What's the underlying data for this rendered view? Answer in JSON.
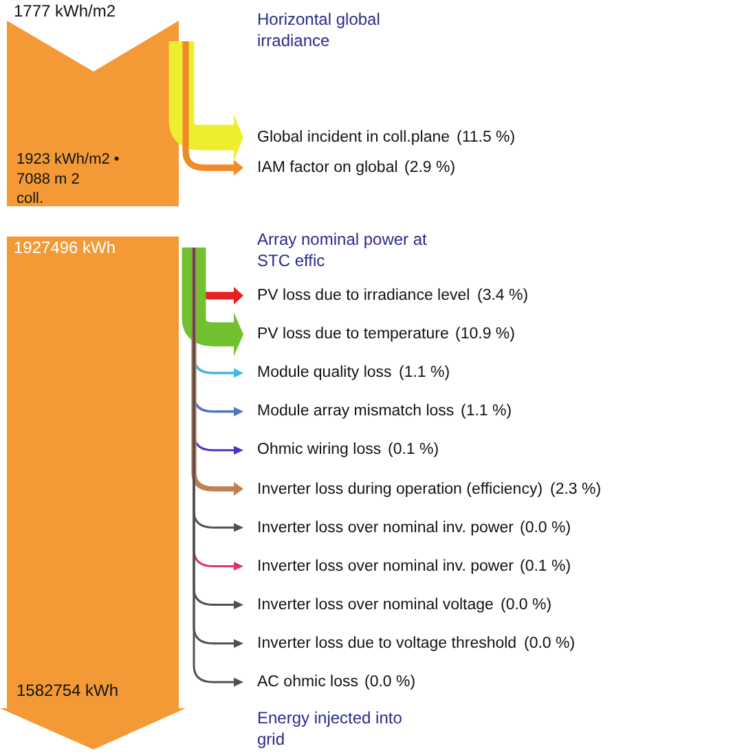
{
  "chart_data": {
    "type": "other",
    "annotations": [
      "1777 kWh/m2",
      "Horizontal global irradiance",
      "1923 kWh/m2 • 7088 m 2 coll.",
      "1927496 kWh",
      "Array nominal power at STC effic",
      "1582754 kWh",
      "Energy injected into grid"
    ],
    "categories": [
      "Global incident in coll.plane",
      "IAM factor on global",
      "PV loss due to irradiance level",
      "PV loss due to temperature",
      "Module quality loss",
      "Module array mismatch loss",
      "Ohmic wiring loss",
      "Inverter loss during operation (efficiency)",
      "Inverter loss over nominal inv. power",
      "Inverter loss over nominal inv. power",
      "Inverter loss over nominal voltage",
      "Inverter loss due to voltage threshold",
      "AC ohmic loss"
    ],
    "values": [
      11.5,
      2.9,
      3.4,
      10.9,
      1.1,
      1.1,
      0.1,
      2.3,
      0.0,
      0.1,
      0.0,
      0.0,
      0.0
    ],
    "value_labels": [
      "(11.5 %)",
      "(2.9 %)",
      "(3.4 %)",
      "(10.9 %)",
      "(1.1 %)",
      "(1.1 %)",
      "(0.1 %)",
      "(2.3 %)",
      "(0.0 %)",
      "(0.1 %)",
      "(0.0 %)",
      "(0.0 %)",
      "(0.0 %)"
    ],
    "colors": [
      "#eeee30",
      "#f08c28",
      "#e82020",
      "#70c030",
      "#40b8e8",
      "#4a78c0",
      "#5030c0",
      "#c08050",
      "#505050",
      "#e03070",
      "#505050",
      "#505050",
      "#505050"
    ]
  }
}
